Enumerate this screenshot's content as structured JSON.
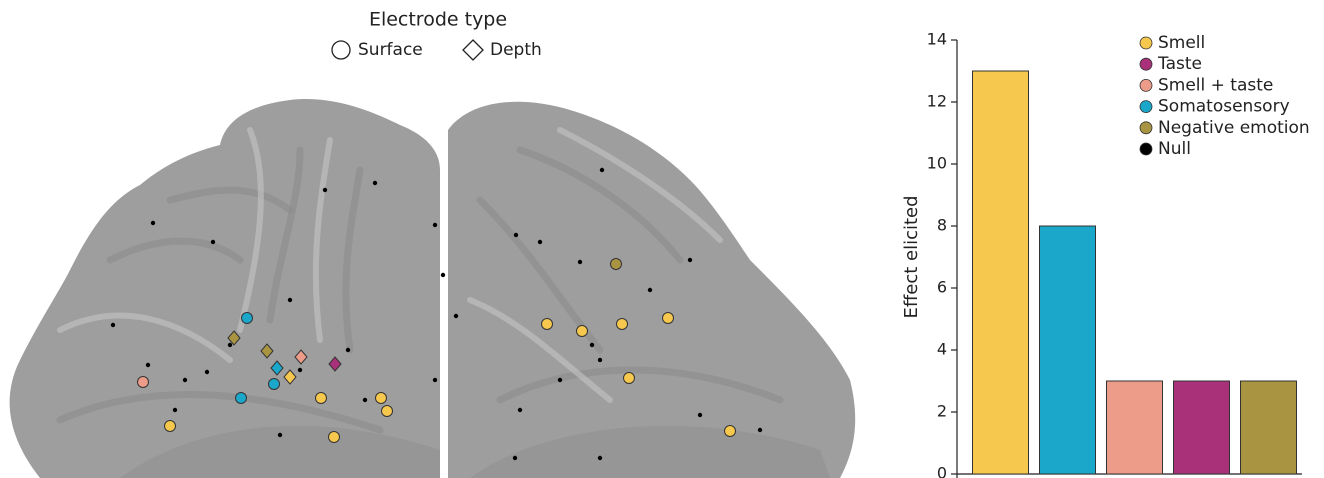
{
  "electrode_legend": {
    "title": "Electrode type",
    "items": [
      "Surface",
      "Depth"
    ]
  },
  "chart_data": {
    "type": "bar",
    "ylabel": "Effect elicited",
    "categories": [
      null,
      null,
      null,
      null,
      null
    ],
    "values": [
      13,
      8,
      3,
      3,
      3
    ],
    "colors": [
      "#f7c84e",
      "#1aa7c9",
      "#ec9c88",
      "#a8317a",
      "#a99442"
    ],
    "legend": [
      {
        "name": "Smell",
        "color": "#f7c84e"
      },
      {
        "name": "Taste",
        "color": "#a8317a"
      },
      {
        "name": "Smell + taste",
        "color": "#ec9c88"
      },
      {
        "name": "Somatosensory",
        "color": "#1aa7c9"
      },
      {
        "name": "Negative emotion",
        "color": "#a99442"
      },
      {
        "name": "Null",
        "color": "#000000"
      }
    ],
    "ylim": [
      0,
      14
    ],
    "yticks": [
      0,
      2,
      4,
      6,
      8,
      10,
      12,
      14
    ]
  }
}
